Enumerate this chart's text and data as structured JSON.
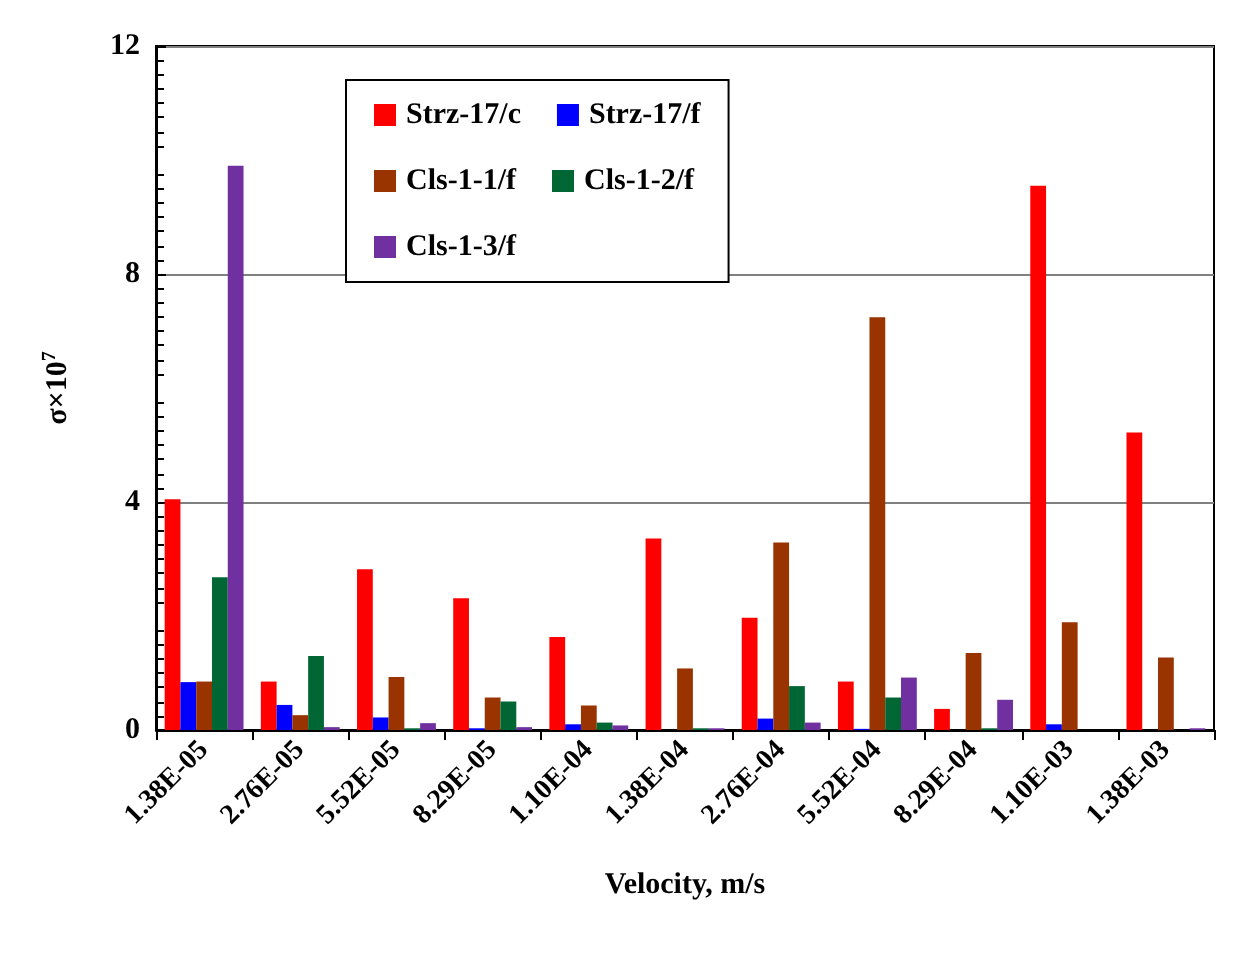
{
  "chart_data": {
    "type": "bar",
    "xlabel": "Velocity, m/s",
    "ylabel": "σ×10$^{7}$",
    "categories": [
      "1.38E-05",
      "2.76E-05",
      "5.52E-05",
      "8.29E-05",
      "1.10E-04",
      "1.38E-04",
      "2.76E-04",
      "5.52E-04",
      "8.29E-04",
      "1.10E-03",
      "1.38E-03"
    ],
    "series": [
      {
        "name": "Strz-17/c",
        "color": "#ff0000",
        "values": [
          4.05,
          0.85,
          2.82,
          2.31,
          1.63,
          3.36,
          1.97,
          0.85,
          0.37,
          9.55,
          5.22
        ]
      },
      {
        "name": "Strz-17/f",
        "color": "#0000ff",
        "values": [
          0.84,
          0.44,
          0.22,
          0.03,
          0.1,
          0,
          0.2,
          0.02,
          0,
          0.1,
          0
        ]
      },
      {
        "name": "Cls-1-1/f",
        "color": "#993300",
        "values": [
          0.85,
          0.26,
          0.93,
          0.57,
          0.43,
          1.08,
          3.29,
          7.24,
          1.35,
          1.89,
          1.27
        ]
      },
      {
        "name": "Cls-1-2/f",
        "color": "#006633",
        "values": [
          2.68,
          1.3,
          0.03,
          0.5,
          0.13,
          0.03,
          0.77,
          0.57,
          0.03,
          0,
          0
        ]
      },
      {
        "name": "Cls-1-3/f",
        "color": "#7030a0",
        "values": [
          9.9,
          0.05,
          0.12,
          0.05,
          0.08,
          0.03,
          0.13,
          0.92,
          0.53,
          0,
          0.03
        ]
      }
    ],
    "ylim": [
      0,
      12
    ],
    "yticks": [
      0,
      4,
      8,
      12
    ],
    "grid": "y",
    "legend": "top left"
  }
}
